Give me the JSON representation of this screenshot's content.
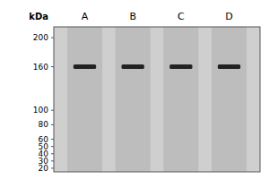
{
  "chart_data": {
    "type": "gel",
    "ylabel": "kDa",
    "categories": [
      "A",
      "B",
      "C",
      "D"
    ],
    "values": [
      160,
      160,
      160,
      160
    ],
    "color": "#111111",
    "ylim": [
      15,
      215
    ],
    "yticks": [
      200,
      160,
      100,
      80,
      60,
      50,
      40,
      30,
      20
    ],
    "grid": false
  }
}
